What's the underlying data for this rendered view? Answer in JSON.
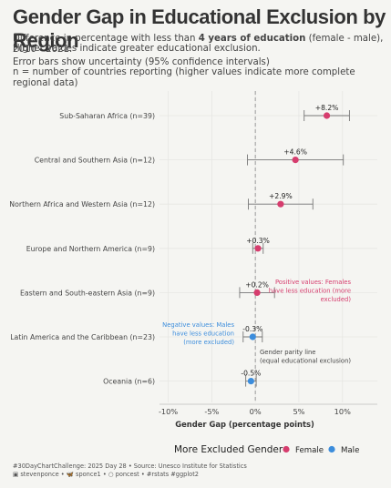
{
  "title": "Gender Gap in Educational Exclusion by Region",
  "subtitle": {
    "line1_pre": "Difference in percentage with less than ",
    "line1_bold": "4 years of education",
    "line1_post": " (female - male), 2010 - 2021.",
    "line2": "Higher values indicate greater educational exclusion.",
    "line3": "Error bars show uncertainty (95% confidence intervals)",
    "line4": "n = number of countries reporting (higher values indicate more complete regional data)"
  },
  "footer": {
    "line1": "#30DayChartChallenge: 2025 Day 28 • Source: Unesco Institute for Statistics",
    "line2": "▣ stevenponce • 🦋 sponce1 • ○ poncest • #rstats #ggplot2"
  },
  "colors": {
    "female": "#d63d6e",
    "male": "#3c8ddc",
    "errorbar": "#777777",
    "zero_line": "#9a9a9a",
    "grid": "#e6e6e3",
    "axis_text": "#444444"
  },
  "chart_data": {
    "type": "scatter",
    "x_axis": {
      "label": "Gender Gap (percentage points)",
      "range": [
        -11,
        14
      ],
      "ticks": [
        -10,
        -5,
        0,
        5,
        10
      ],
      "tick_labels": [
        "-10%",
        "-5%",
        "0%",
        "5%",
        "10%"
      ]
    },
    "grid": true,
    "legend": {
      "title": "More Excluded Gender",
      "position": "bottom",
      "entries": [
        {
          "label": "Female",
          "color_key": "female"
        },
        {
          "label": "Male",
          "color_key": "male"
        }
      ]
    },
    "points": [
      {
        "region": "Sub-Saharan Africa (n=39)",
        "value": 8.2,
        "lower": 5.6,
        "upper": 10.8,
        "label": "+8.2%",
        "gender": "female"
      },
      {
        "region": "Central and Southern Asia (n=12)",
        "value": 4.6,
        "lower": -0.9,
        "upper": 10.1,
        "label": "+4.6%",
        "gender": "female"
      },
      {
        "region": "Northern Africa and Western Asia (n=12)",
        "value": 2.9,
        "lower": -0.8,
        "upper": 6.6,
        "label": "+2.9%",
        "gender": "female"
      },
      {
        "region": "Europe and Northern America (n=9)",
        "value": 0.3,
        "lower": -0.3,
        "upper": 0.9,
        "label": "+0.3%",
        "gender": "female"
      },
      {
        "region": "Eastern and South-eastern Asia (n=9)",
        "value": 0.2,
        "lower": -1.8,
        "upper": 2.2,
        "label": "+0.2%",
        "gender": "female"
      },
      {
        "region": "Latin America and the Caribbean (n=23)",
        "value": -0.3,
        "lower": -1.4,
        "upper": 0.8,
        "label": "-0.3%",
        "gender": "male"
      },
      {
        "region": "Oceania (n=6)",
        "value": -0.5,
        "lower": -1.1,
        "upper": 0.1,
        "label": "-0.5%",
        "gender": "male"
      }
    ],
    "annotations": [
      {
        "id": "positive",
        "lines": [
          "Positive values: Females",
          "have less education (more",
          "excluded)"
        ],
        "color_key": "female"
      },
      {
        "id": "negative",
        "lines": [
          "Negative values: Males",
          "have less education",
          "(more excluded)"
        ],
        "color_key": "male"
      },
      {
        "id": "parity",
        "lines": [
          "Gender parity line",
          "(equal educational exclusion)"
        ],
        "color_key": "axis_text"
      }
    ]
  }
}
